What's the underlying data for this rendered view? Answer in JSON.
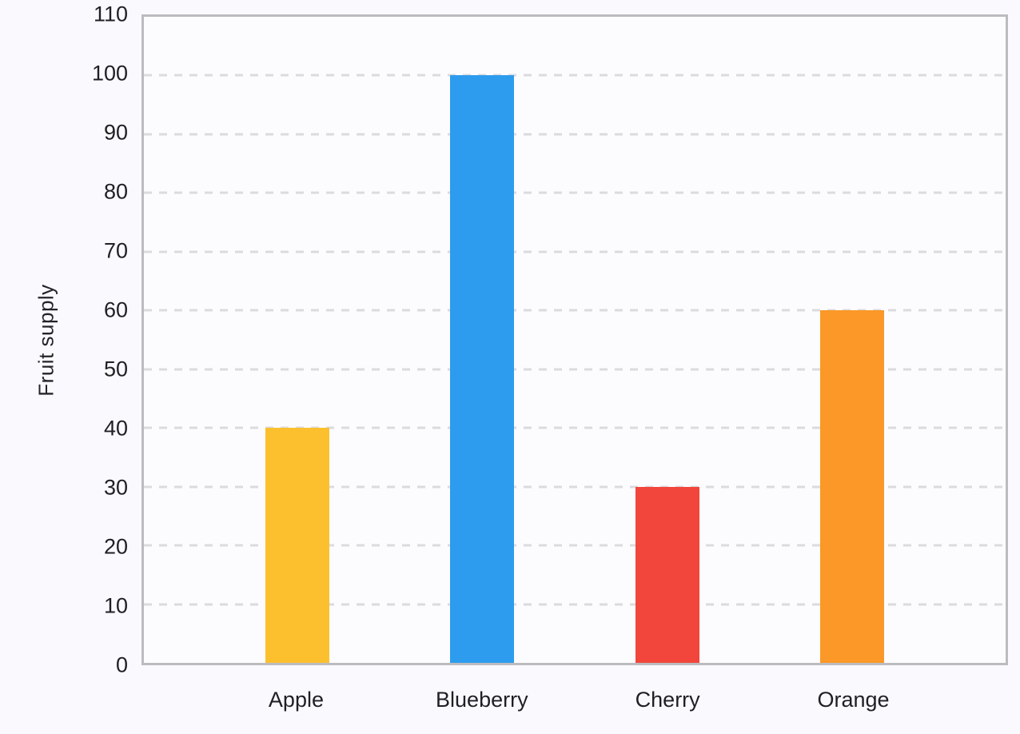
{
  "chart_data": {
    "type": "bar",
    "categories": [
      "Apple",
      "Blueberry",
      "Cherry",
      "Orange"
    ],
    "values": [
      40,
      100,
      30,
      60
    ],
    "bar_colors": [
      "#FCC02E",
      "#2D9CEE",
      "#F2463C",
      "#FB9827"
    ],
    "title": "",
    "xlabel": "",
    "ylabel": "Fruit supply",
    "ylim": [
      0,
      110
    ],
    "ytick_step": 10,
    "ytick_labels": [
      "0",
      "10",
      "20",
      "30",
      "40",
      "50",
      "60",
      "70",
      "80",
      "90",
      "100",
      "110"
    ],
    "grid": "horizontal-dashed",
    "legend": "none",
    "plot_border_color": "#BCBCC0",
    "gridline_color": "#DBDBDF",
    "background_color": "#FAFAFE",
    "plot_background_color": "#FCFCFE",
    "text_color": "#1F1F24"
  }
}
